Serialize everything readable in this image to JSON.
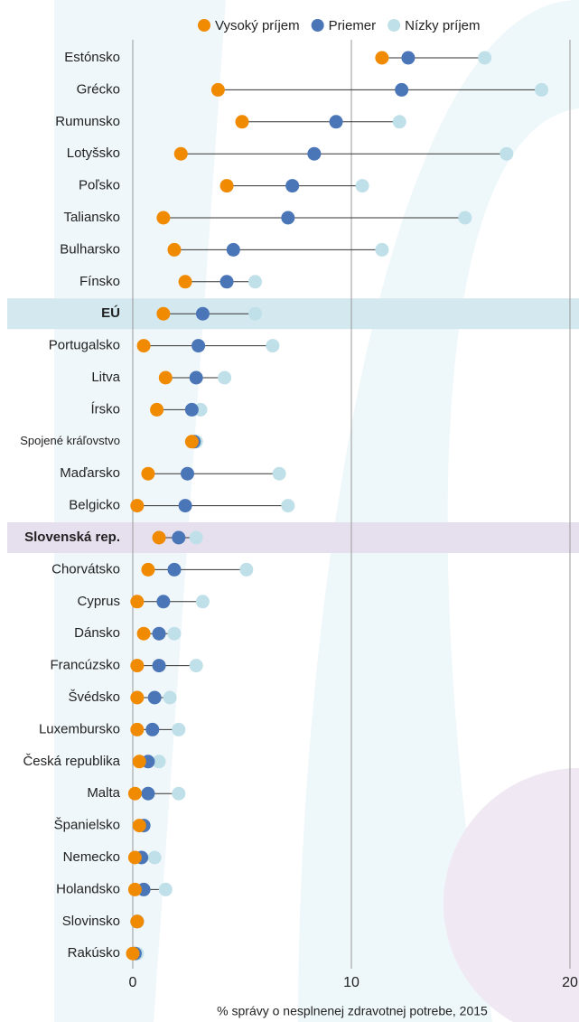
{
  "chart_data": {
    "type": "dot",
    "x_label": "% správy o nesplnenej zdravotnej potrebe, 2015",
    "categories": [
      "Estónsko",
      "Grécko",
      "Rumunsko",
      "Lotyšsko",
      "Poľsko",
      "Taliansko",
      "Bulharsko",
      "Fínsko",
      "EÚ",
      "Portugalsko",
      "Litva",
      "Írsko",
      "Spojené kráľovstvo",
      "Maďarsko",
      "Belgicko",
      "Slovenská rep.",
      "Chorvátsko",
      "Cyprus",
      "Dánsko",
      "Francúzsko",
      "Švédsko",
      "Luxembursko",
      "Česká republika",
      "Malta",
      "Španielsko",
      "Nemecko",
      "Holandsko",
      "Slovinsko",
      "Rakúsko"
    ],
    "series": [
      {
        "name": "Vysoký príjem",
        "color": "#f08a00",
        "values": [
          11.4,
          3.9,
          5.0,
          2.2,
          4.3,
          1.4,
          1.9,
          2.4,
          1.4,
          0.5,
          1.5,
          1.1,
          2.7,
          0.7,
          0.2,
          1.2,
          0.7,
          0.2,
          0.5,
          0.2,
          0.2,
          0.2,
          0.3,
          0.1,
          0.3,
          0.1,
          0.1,
          0.2,
          0.0
        ]
      },
      {
        "name": "Priemer",
        "color": "#4a76b8",
        "values": [
          12.6,
          12.3,
          9.3,
          8.3,
          7.3,
          7.1,
          4.6,
          4.3,
          3.2,
          3.0,
          2.9,
          2.7,
          2.8,
          2.5,
          2.4,
          2.1,
          1.9,
          1.4,
          1.2,
          1.2,
          1.0,
          0.9,
          0.7,
          0.7,
          0.5,
          0.4,
          0.5,
          0.2,
          0.1
        ]
      },
      {
        "name": "Nízky príjem",
        "color": "#bfe0e8",
        "values": [
          16.1,
          18.7,
          12.2,
          17.1,
          10.5,
          15.2,
          11.4,
          5.6,
          5.6,
          6.4,
          4.2,
          3.1,
          2.9,
          6.7,
          7.1,
          2.9,
          5.2,
          3.2,
          1.9,
          2.9,
          1.7,
          2.1,
          1.2,
          2.1,
          0.5,
          1.0,
          1.5,
          0.2,
          0.2
        ]
      }
    ],
    "xlim": [
      0,
      20
    ],
    "xticks": [
      0,
      10,
      20
    ],
    "grid": true
  }
}
